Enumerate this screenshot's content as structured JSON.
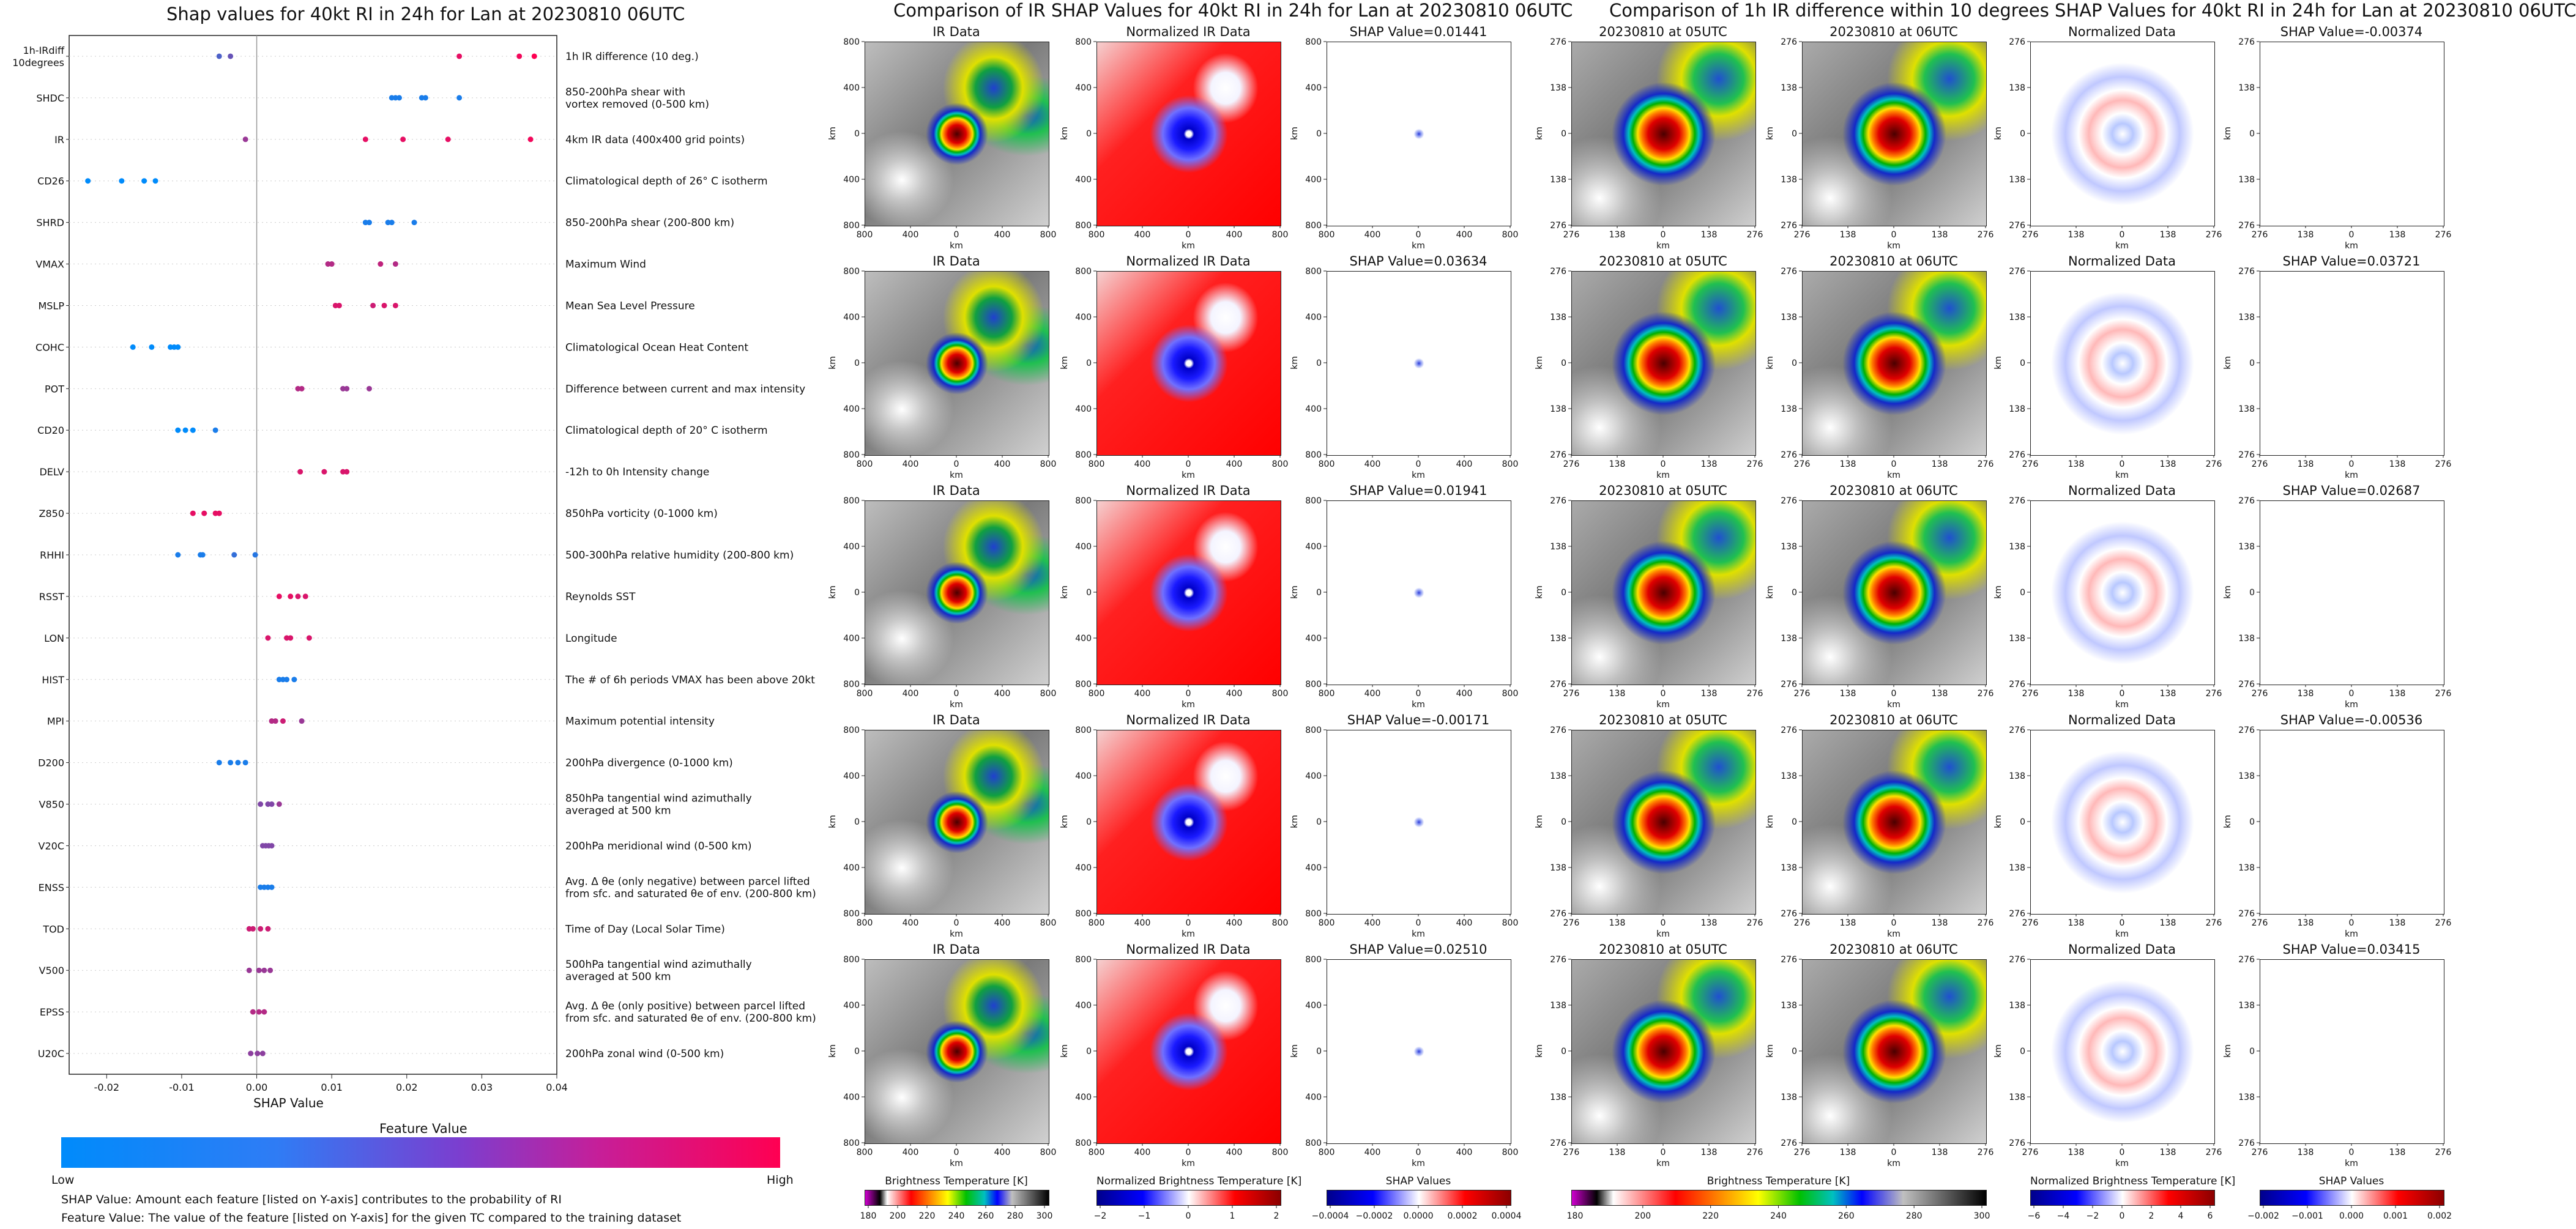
{
  "left_title": "Shap values for 40kt RI in 24h for Lan at 20230810 06UTC",
  "mid_title": "Comparison of IR SHAP Values for 40kt RI in 24h for Lan at 20230810 06UTC",
  "right_title": "Comparison of 1h IR difference within 10 degrees SHAP Values for 40kt RI in 24h for Lan at 20230810 06UTC",
  "colors": {
    "low": "#008BFB",
    "high": "#FF0052"
  },
  "chart_data": [
    {
      "type": "scatter",
      "title": "Shap values for 40kt RI in 24h for Lan at 20230810 06UTC",
      "xlabel": "SHAP Value",
      "xlim": [
        -0.025,
        0.04
      ],
      "xticks": [
        "-0.02",
        "-0.01",
        "0.00",
        "0.01",
        "0.02",
        "0.03",
        "0.04"
      ],
      "colorbar": {
        "label": "Feature Value",
        "low": "Low",
        "high": "High"
      },
      "features": [
        {
          "name": "1h-IRdiff\n10degrees",
          "desc": "1h IR difference (10 deg.)",
          "points": [
            [
              -0.005,
              0.3
            ],
            [
              -0.0035,
              0.4
            ],
            [
              0.027,
              0.9
            ],
            [
              0.035,
              0.95
            ],
            [
              0.037,
              1
            ]
          ]
        },
        {
          "name": "SHDC",
          "desc": "850-200hPa shear with\nvortex removed (0-500 km)",
          "points": [
            [
              0.018,
              0.1
            ],
            [
              0.0185,
              0.1
            ],
            [
              0.019,
              0.1
            ],
            [
              0.022,
              0.1
            ],
            [
              0.0225,
              0.1
            ],
            [
              0.027,
              0.1
            ]
          ]
        },
        {
          "name": "IR",
          "desc": "4km IR data (400x400 grid points)",
          "points": [
            [
              -0.0015,
              0.6
            ],
            [
              0.0145,
              0.9
            ],
            [
              0.0195,
              0.9
            ],
            [
              0.0255,
              0.9
            ],
            [
              0.0365,
              0.95
            ]
          ]
        },
        {
          "name": "CD26",
          "desc": "Climatological depth of 26° C isotherm",
          "points": [
            [
              -0.0225,
              0
            ],
            [
              -0.018,
              0
            ],
            [
              -0.015,
              0
            ],
            [
              -0.0135,
              0
            ]
          ]
        },
        {
          "name": "SHRD",
          "desc": "850-200hPa shear (200-800 km)",
          "points": [
            [
              0.0145,
              0.1
            ],
            [
              0.015,
              0.1
            ],
            [
              0.0175,
              0.1
            ],
            [
              0.018,
              0.1
            ],
            [
              0.021,
              0.1
            ]
          ]
        },
        {
          "name": "VMAX",
          "desc": "Maximum Wind",
          "points": [
            [
              0.0095,
              0.7
            ],
            [
              0.01,
              0.7
            ],
            [
              0.0165,
              0.75
            ],
            [
              0.0185,
              0.7
            ]
          ]
        },
        {
          "name": "MSLP",
          "desc": "Mean Sea Level Pressure",
          "points": [
            [
              0.0105,
              0.85
            ],
            [
              0.011,
              0.85
            ],
            [
              0.0155,
              0.8
            ],
            [
              0.017,
              0.85
            ],
            [
              0.0185,
              0.85
            ]
          ]
        },
        {
          "name": "COHC",
          "desc": "Climatological Ocean Heat Content",
          "points": [
            [
              -0.0165,
              0
            ],
            [
              -0.014,
              0
            ],
            [
              -0.0115,
              0
            ],
            [
              -0.011,
              0
            ],
            [
              -0.0105,
              0
            ]
          ]
        },
        {
          "name": "POT",
          "desc": "Difference between current and max intensity",
          "points": [
            [
              0.0055,
              0.7
            ],
            [
              0.006,
              0.7
            ],
            [
              0.0115,
              0.6
            ],
            [
              0.012,
              0.6
            ],
            [
              0.015,
              0.6
            ]
          ]
        },
        {
          "name": "CD20",
          "desc": "Climatological depth of 20° C isotherm",
          "points": [
            [
              -0.0105,
              0
            ],
            [
              -0.0095,
              0
            ],
            [
              -0.0085,
              0
            ],
            [
              -0.0055,
              0.1
            ]
          ]
        },
        {
          "name": "DELV",
          "desc": "-12h to 0h Intensity change",
          "points": [
            [
              0.0058,
              0.85
            ],
            [
              0.009,
              0.85
            ],
            [
              0.0115,
              0.85
            ],
            [
              0.012,
              0.85
            ]
          ]
        },
        {
          "name": "Z850",
          "desc": "850hPa vorticity (0-1000 km)",
          "points": [
            [
              -0.0085,
              0.9
            ],
            [
              -0.007,
              0.9
            ],
            [
              -0.0055,
              0.9
            ],
            [
              -0.005,
              0.9
            ]
          ]
        },
        {
          "name": "RHHI",
          "desc": "500-300hPa relative humidity (200-800 km)",
          "points": [
            [
              -0.0105,
              0.1
            ],
            [
              -0.0075,
              0.1
            ],
            [
              -0.0072,
              0.1
            ],
            [
              -0.003,
              0.2
            ],
            [
              -0.0002,
              0.15
            ]
          ]
        },
        {
          "name": "RSST",
          "desc": "Reynolds SST",
          "points": [
            [
              0.003,
              0.9
            ],
            [
              0.0045,
              0.9
            ],
            [
              0.0055,
              0.85
            ],
            [
              0.0065,
              0.85
            ]
          ]
        },
        {
          "name": "LON",
          "desc": "Longitude",
          "points": [
            [
              0.0015,
              0.85
            ],
            [
              0.004,
              0.85
            ],
            [
              0.0045,
              0.85
            ],
            [
              0.007,
              0.85
            ]
          ]
        },
        {
          "name": "HIST",
          "desc": "The # of 6h periods VMAX has been above 20kt",
          "points": [
            [
              0.003,
              0.1
            ],
            [
              0.0035,
              0.1
            ],
            [
              0.004,
              0.1
            ],
            [
              0.005,
              0.1
            ]
          ]
        },
        {
          "name": "MPI",
          "desc": "Maximum potential intensity",
          "points": [
            [
              0.002,
              0.7
            ],
            [
              0.0025,
              0.7
            ],
            [
              0.0035,
              0.8
            ],
            [
              0.006,
              0.6
            ]
          ]
        },
        {
          "name": "D200",
          "desc": "200hPa divergence (0-1000 km)",
          "points": [
            [
              -0.005,
              0.1
            ],
            [
              -0.0035,
              0.1
            ],
            [
              -0.0025,
              0.1
            ],
            [
              -0.0015,
              0.1
            ]
          ]
        },
        {
          "name": "V850",
          "desc": "850hPa tangential wind azimuthally\naveraged at 500 km",
          "points": [
            [
              0.0005,
              0.5
            ],
            [
              0.0015,
              0.5
            ],
            [
              0.002,
              0.5
            ],
            [
              0.003,
              0.6
            ]
          ]
        },
        {
          "name": "V20C",
          "desc": "200hPa meridional wind (0-500 km)",
          "points": [
            [
              0.0008,
              0.5
            ],
            [
              0.0012,
              0.5
            ],
            [
              0.0016,
              0.5
            ],
            [
              0.002,
              0.5
            ]
          ]
        },
        {
          "name": "ENSS",
          "desc": "Avg. Δ θe (only negative) between parcel lifted\nfrom sfc. and saturated θe of env. (200-800 km)",
          "points": [
            [
              0.0005,
              0.1
            ],
            [
              0.001,
              0.1
            ],
            [
              0.0015,
              0.1
            ],
            [
              0.002,
              0.1
            ]
          ]
        },
        {
          "name": "TOD",
          "desc": "Time of Day (Local Solar Time)",
          "points": [
            [
              -0.001,
              0.8
            ],
            [
              -0.0005,
              0.8
            ],
            [
              0.0005,
              0.8
            ],
            [
              0.0015,
              0.8
            ]
          ]
        },
        {
          "name": "V500",
          "desc": "500hPa tangential wind azimuthally\naveraged at 500 km",
          "points": [
            [
              -0.001,
              0.6
            ],
            [
              0.0003,
              0.6
            ],
            [
              0.001,
              0.6
            ],
            [
              0.0018,
              0.6
            ]
          ]
        },
        {
          "name": "EPSS",
          "desc": "Avg. Δ θe (only positive) between parcel lifted\nfrom sfc. and saturated θe of env. (200-800 km)",
          "points": [
            [
              -0.0005,
              0.7
            ],
            [
              0.0003,
              0.7
            ],
            [
              0.001,
              0.7
            ]
          ]
        },
        {
          "name": "U20C",
          "desc": "200hPa zonal wind (0-500 km)",
          "points": [
            [
              -0.0008,
              0.55
            ],
            [
              0.0001,
              0.55
            ],
            [
              0.0008,
              0.55
            ]
          ]
        }
      ]
    },
    {
      "type": "heatmap",
      "title": "Comparison of IR SHAP Values for 40kt RI in 24h for Lan at 20230810 06UTC",
      "columns": [
        "IR Data",
        "Normalized IR Data"
      ],
      "shap_titles": [
        "SHAP Value=0.01441",
        "SHAP Value=0.03634",
        "SHAP Value=0.01941",
        "SHAP Value=-0.00171",
        "SHAP Value=0.02510"
      ],
      "xlabel": "km",
      "ylabel": "km",
      "xticks": [
        "800",
        "400",
        "0",
        "400",
        "800"
      ],
      "yticks": [
        "800",
        "400",
        "0",
        "400",
        "800"
      ],
      "colorbars": [
        {
          "label": "Brightness Temperature [K]",
          "ticks": [
            "180",
            "200",
            "220",
            "240",
            "260",
            "280",
            "300"
          ]
        },
        {
          "label": "Normalized Brightness Temperature [K]",
          "ticks": [
            "−2",
            "−1",
            "0",
            "1",
            "2"
          ]
        },
        {
          "label": "SHAP Values",
          "ticks": [
            "−0.0004",
            "−0.0002",
            "0.0000",
            "0.0002",
            "0.0004"
          ]
        }
      ]
    },
    {
      "type": "heatmap",
      "title": "Comparison of 1h IR difference within 10 degrees SHAP Values for 40kt RI in 24h for Lan at 20230810 06UTC",
      "columns": [
        "20230810 at 05UTC",
        "20230810 at 06UTC",
        "Normalized Data"
      ],
      "shap_titles": [
        "SHAP Value=-0.00374",
        "SHAP Value=0.03721",
        "SHAP Value=0.02687",
        "SHAP Value=-0.00536",
        "SHAP Value=0.03415"
      ],
      "xlabel": "km",
      "ylabel": "km",
      "xticks": [
        "276",
        "138",
        "0",
        "138",
        "276"
      ],
      "yticks": [
        "276",
        "138",
        "0",
        "138",
        "276"
      ],
      "colorbars": [
        {
          "label": "Brightness Temperature [K]",
          "ticks": [
            "180",
            "200",
            "220",
            "240",
            "260",
            "280",
            "300"
          ]
        },
        {
          "label": "Normalized Brightness Temperature [K]",
          "ticks": [
            "−6",
            "−4",
            "−2",
            "0",
            "2",
            "4",
            "6"
          ]
        },
        {
          "label": "SHAP Values",
          "ticks": [
            "−0.002",
            "−0.001",
            "0.000",
            "0.001",
            "0.002"
          ]
        }
      ]
    }
  ],
  "notes": {
    "shap_desc": "SHAP Value: Amount each feature [listed on Y-axis] contributes to the probability of RI",
    "feature_desc": "Feature Value: The value of the feature [listed on Y-axis] for the given TC compared to the training dataset"
  }
}
